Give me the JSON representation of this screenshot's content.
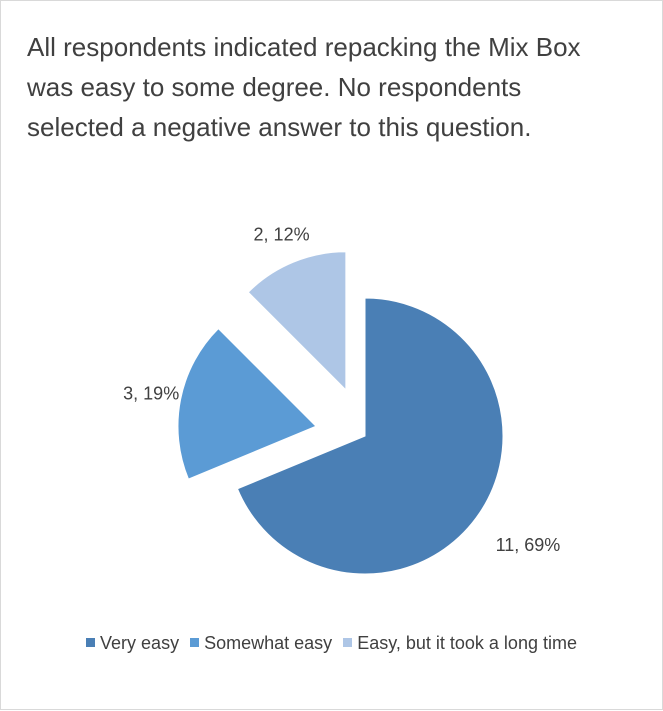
{
  "chart_data": {
    "type": "pie",
    "title": "All respondents indicated repacking the Mix Box was easy to some degree. No respondents selected a negative answer to this question.",
    "categories": [
      "Very easy",
      "Somewhat easy",
      "Easy, but it took a long time"
    ],
    "values": [
      11,
      3,
      2
    ],
    "percents": [
      69,
      19,
      12
    ],
    "data_labels": [
      "11, 69%",
      "3, 19%",
      "2, 12%"
    ],
    "colors": [
      "#4a7fb5",
      "#5b9bd5",
      "#aec6e6"
    ],
    "exploded": [
      false,
      true,
      true
    ],
    "legend_position": "bottom"
  }
}
